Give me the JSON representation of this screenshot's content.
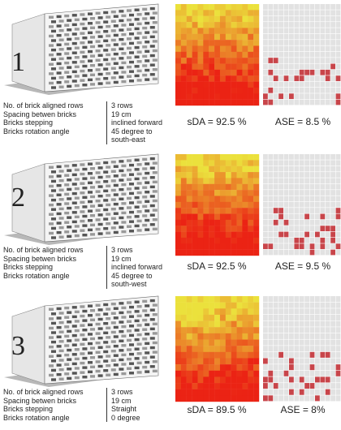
{
  "panels": [
    {
      "number": "1",
      "params": [
        {
          "label": "No. of brick aligned rows",
          "value": "3 rows"
        },
        {
          "label": "Spacing betwen bricks",
          "value": "19 cm"
        },
        {
          "label": "Bricks stepping",
          "value": "inclined forward"
        },
        {
          "label": "Bricks rotation angle",
          "value": "45 degree to south-east"
        }
      ],
      "sda": "sDA = 92.5 %",
      "ase": "ASE = 8.5 %"
    },
    {
      "number": "2",
      "params": [
        {
          "label": "No. of brick aligned rows",
          "value": "3 rows"
        },
        {
          "label": "Spacing betwen bricks",
          "value": "19 cm"
        },
        {
          "label": "Bricks stepping",
          "value": "inclined forward"
        },
        {
          "label": "Bricks rotation angle",
          "value": "45 degree to south-west"
        }
      ],
      "sda": "sDA = 92.5 %",
      "ase": "ASE = 9.5 %"
    },
    {
      "number": "3",
      "params": [
        {
          "label": "No. of brick aligned rows",
          "value": "3 rows"
        },
        {
          "label": "Spacing betwen bricks",
          "value": "19 cm"
        },
        {
          "label": "Bricks stepping",
          "value": "Straight"
        },
        {
          "label": "Bricks rotation angle",
          "value": "0 degree"
        }
      ],
      "sda": "sDA = 89.5 %",
      "ase": "ASE = 8%"
    }
  ]
}
